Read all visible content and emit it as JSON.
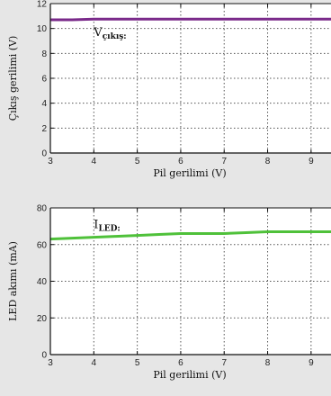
{
  "chart_data": [
    {
      "type": "line",
      "xlabel": "Pil gerilimi (V)",
      "ylabel": "Çıkış gerilimi (V)",
      "xlim": [
        3,
        9.5
      ],
      "ylim": [
        0,
        12
      ],
      "xticks": [
        3,
        4,
        5,
        6,
        7,
        8,
        9
      ],
      "yticks": [
        0,
        2,
        4,
        6,
        8,
        10,
        12
      ],
      "grid": true,
      "annotation": {
        "main": "V",
        "sub": "çıkış",
        "x": 4,
        "y": 9.4
      },
      "series": [
        {
          "color": "#7a2a8a",
          "x": [
            3,
            3.5,
            4,
            4.5,
            5,
            5.5,
            6,
            6.5,
            7,
            7.5,
            8,
            8.5,
            9,
            9.5
          ],
          "y": [
            10.7,
            10.7,
            10.75,
            10.75,
            10.75,
            10.75,
            10.75,
            10.75,
            10.75,
            10.75,
            10.75,
            10.75,
            10.75,
            10.75
          ]
        }
      ]
    },
    {
      "type": "line",
      "xlabel": "Pil gerilimi (V)",
      "ylabel": "LED akımı (mA)",
      "xlim": [
        3,
        9.5
      ],
      "ylim": [
        0,
        80
      ],
      "xticks": [
        3,
        4,
        5,
        6,
        7,
        8,
        9
      ],
      "yticks": [
        0,
        20,
        40,
        60,
        80
      ],
      "grid": true,
      "annotation": {
        "main": "I",
        "sub": "LED",
        "x": 4,
        "y": 69
      },
      "series": [
        {
          "color": "#4fc13a",
          "x": [
            3,
            3.5,
            4,
            4.5,
            5,
            5.5,
            6,
            6.5,
            7,
            7.5,
            8,
            8.5,
            9,
            9.5
          ],
          "y": [
            63,
            63.5,
            64,
            64.5,
            65,
            65.5,
            66,
            66,
            66,
            66.5,
            67,
            67,
            67,
            67
          ]
        }
      ]
    }
  ]
}
